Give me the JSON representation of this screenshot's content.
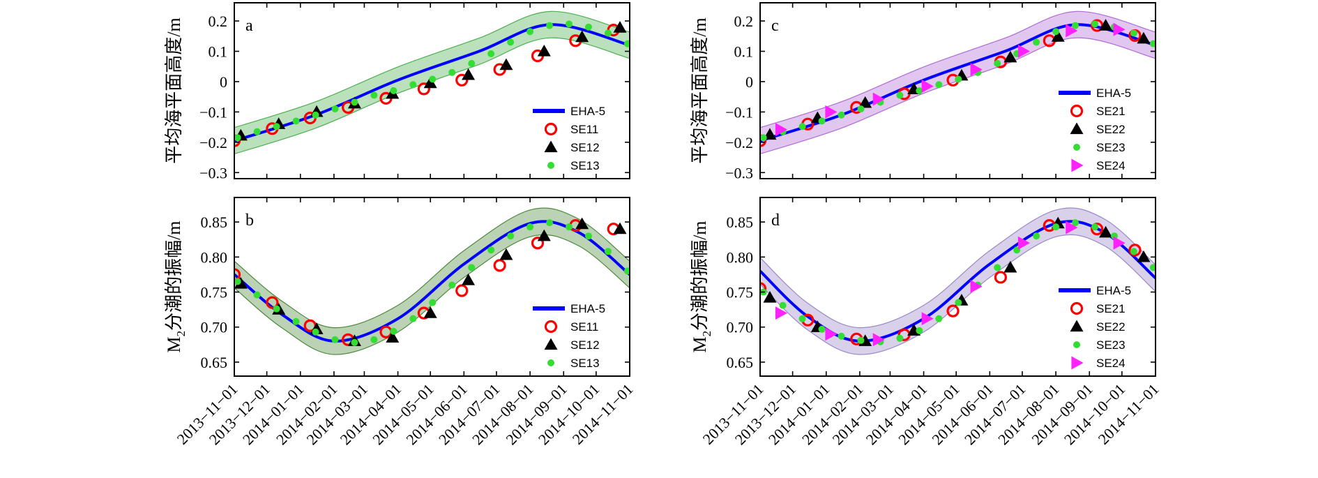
{
  "chart_data": [
    {
      "type": "line",
      "panel": "a",
      "ylabel": "平均海平面高度/m",
      "ylim": [
        -0.32,
        0.26
      ],
      "yticks": [
        0.2,
        0.1,
        0,
        -0.1,
        -0.2,
        -0.3
      ],
      "ytick_labels": [
        "0.2",
        "0.1",
        "0",
        "−0.1",
        "−0.2",
        "−0.3"
      ],
      "x_range": [
        "2013-11-01",
        "2014-11-01"
      ],
      "band": {
        "series": "SE12",
        "color": "#4caf50"
      },
      "series": [
        {
          "name": "EHA-5",
          "marker": "line",
          "color": "#0000ff",
          "x": [
            "2013-11-01",
            "2014-01-15",
            "2014-04-01",
            "2014-06-15",
            "2014-08-20",
            "2014-11-01"
          ],
          "y": [
            -0.195,
            -0.11,
            0.005,
            0.1,
            0.188,
            0.12
          ]
        },
        {
          "name": "SE11",
          "marker": "circle",
          "color": "#ff0000",
          "x": [
            "2013-11-01",
            "2013-12-06",
            "2014-01-10",
            "2014-02-14",
            "2014-03-21",
            "2014-04-25",
            "2014-05-30",
            "2014-07-04",
            "2014-08-08",
            "2014-09-12",
            "2014-10-17"
          ],
          "y": [
            -0.195,
            -0.155,
            -0.12,
            -0.085,
            -0.055,
            -0.024,
            0.005,
            0.04,
            0.085,
            0.135,
            0.17
          ]
        },
        {
          "name": "SE12",
          "marker": "triangle",
          "color": "#000000",
          "x": [
            "2013-11-07",
            "2013-12-12",
            "2014-01-16",
            "2014-02-20",
            "2014-03-27",
            "2014-05-01",
            "2014-06-05",
            "2014-07-10",
            "2014-08-14",
            "2014-09-18",
            "2014-10-23"
          ],
          "y": [
            -0.178,
            -0.14,
            -0.1,
            -0.072,
            -0.04,
            -0.005,
            0.022,
            0.055,
            0.1,
            0.147,
            0.178
          ]
        },
        {
          "name": "SE13",
          "marker": "dot",
          "color": "#33dd33",
          "x": [
            "2013-11-04",
            "2013-11-22",
            "2013-12-10",
            "2013-12-28",
            "2014-01-15",
            "2014-02-02",
            "2014-02-20",
            "2014-03-10",
            "2014-03-28",
            "2014-04-15",
            "2014-05-03",
            "2014-05-21",
            "2014-06-08",
            "2014-06-26",
            "2014-07-14",
            "2014-08-01",
            "2014-08-19",
            "2014-09-06",
            "2014-09-24",
            "2014-10-12",
            "2014-10-30"
          ],
          "y": [
            -0.185,
            -0.165,
            -0.148,
            -0.13,
            -0.11,
            -0.09,
            -0.068,
            -0.045,
            -0.03,
            -0.01,
            0.008,
            0.03,
            0.06,
            0.092,
            0.13,
            0.165,
            0.185,
            0.19,
            0.18,
            0.16,
            0.125
          ]
        }
      ],
      "legend_position": "lower-right"
    },
    {
      "type": "line",
      "panel": "b",
      "ylabel": "M2分潮的振幅/m",
      "ylim": [
        0.63,
        0.885
      ],
      "yticks": [
        0.85,
        0.8,
        0.75,
        0.7,
        0.65
      ],
      "ytick_labels": [
        "0.85",
        "0.80",
        "0.75",
        "0.70",
        "0.65"
      ],
      "x_range": [
        "2013-11-01",
        "2014-11-01"
      ],
      "band": {
        "series": "SE12",
        "color": "#4b8a3b"
      },
      "series": [
        {
          "name": "EHA-5",
          "marker": "line",
          "color": "#0000ff",
          "x": [
            "2013-11-01",
            "2013-12-15",
            "2014-02-01",
            "2014-04-01",
            "2014-06-01",
            "2014-08-01",
            "2014-09-15",
            "2014-11-01"
          ],
          "y": [
            0.775,
            0.718,
            0.68,
            0.712,
            0.79,
            0.848,
            0.835,
            0.775
          ]
        },
        {
          "name": "SE11",
          "marker": "circle",
          "color": "#ff0000",
          "x": [
            "2013-11-01",
            "2013-12-06",
            "2014-01-10",
            "2014-02-14",
            "2014-03-21",
            "2014-04-25",
            "2014-05-30",
            "2014-07-04",
            "2014-08-08",
            "2014-09-12",
            "2014-10-17"
          ],
          "y": [
            0.775,
            0.735,
            0.702,
            0.682,
            0.693,
            0.72,
            0.752,
            0.788,
            0.82,
            0.845,
            0.84
          ]
        },
        {
          "name": "SE12",
          "marker": "triangle",
          "color": "#000000",
          "x": [
            "2013-11-07",
            "2013-12-12",
            "2014-01-16",
            "2014-02-20",
            "2014-03-27",
            "2014-05-01",
            "2014-06-05",
            "2014-07-10",
            "2014-08-14",
            "2014-09-18",
            "2014-10-23"
          ],
          "y": [
            0.762,
            0.725,
            0.697,
            0.68,
            0.685,
            0.72,
            0.767,
            0.803,
            0.83,
            0.847,
            0.84
          ]
        },
        {
          "name": "SE13",
          "marker": "dot",
          "color": "#33dd33",
          "x": [
            "2013-11-04",
            "2013-11-22",
            "2013-12-10",
            "2013-12-28",
            "2014-01-15",
            "2014-02-02",
            "2014-02-20",
            "2014-03-10",
            "2014-03-28",
            "2014-04-15",
            "2014-05-03",
            "2014-05-21",
            "2014-06-08",
            "2014-06-26",
            "2014-07-14",
            "2014-08-01",
            "2014-08-19",
            "2014-09-06",
            "2014-09-24",
            "2014-10-12",
            "2014-10-30"
          ],
          "y": [
            0.765,
            0.746,
            0.726,
            0.708,
            0.693,
            0.682,
            0.678,
            0.682,
            0.694,
            0.712,
            0.735,
            0.76,
            0.785,
            0.81,
            0.83,
            0.843,
            0.849,
            0.843,
            0.83,
            0.808,
            0.78
          ]
        }
      ],
      "legend_position": "lower-right"
    },
    {
      "type": "line",
      "panel": "c",
      "ylabel": "平均海平面高度/m",
      "ylim": [
        -0.32,
        0.26
      ],
      "yticks": [
        0.2,
        0.1,
        0,
        -0.1,
        -0.2,
        -0.3
      ],
      "ytick_labels": [
        "0.2",
        "0.1",
        "0",
        "−0.1",
        "−0.2",
        "−0.3"
      ],
      "x_range": [
        "2013-11-01",
        "2014-11-01"
      ],
      "band": {
        "series": "SE24",
        "color": "#b06ad6"
      },
      "series": [
        {
          "name": "EHA-5",
          "marker": "line",
          "color": "#0000ff",
          "x": [
            "2013-11-01",
            "2014-01-15",
            "2014-04-01",
            "2014-06-15",
            "2014-08-20",
            "2014-11-01"
          ],
          "y": [
            -0.195,
            -0.11,
            0.005,
            0.1,
            0.188,
            0.12
          ]
        },
        {
          "name": "SE21",
          "marker": "circle",
          "color": "#ff0000",
          "x": [
            "2013-11-01",
            "2013-12-15",
            "2014-01-29",
            "2014-03-14",
            "2014-04-28",
            "2014-06-11",
            "2014-07-26",
            "2014-09-08",
            "2014-10-13"
          ],
          "y": [
            -0.195,
            -0.14,
            -0.085,
            -0.04,
            0.005,
            0.065,
            0.135,
            0.185,
            0.152
          ]
        },
        {
          "name": "SE22",
          "marker": "triangle",
          "color": "#000000",
          "x": [
            "2013-11-10",
            "2013-12-24",
            "2014-02-06",
            "2014-03-23",
            "2014-05-06",
            "2014-06-20",
            "2014-08-03",
            "2014-09-16",
            "2014-10-21"
          ],
          "y": [
            -0.175,
            -0.12,
            -0.07,
            -0.025,
            0.02,
            0.08,
            0.148,
            0.185,
            0.142
          ]
        },
        {
          "name": "SE23",
          "marker": "dot",
          "color": "#33dd33",
          "x": [
            "2013-11-04",
            "2013-11-22",
            "2013-12-10",
            "2013-12-28",
            "2014-01-15",
            "2014-02-02",
            "2014-02-20",
            "2014-03-10",
            "2014-03-28",
            "2014-04-15",
            "2014-05-03",
            "2014-05-21",
            "2014-06-08",
            "2014-06-26",
            "2014-07-14",
            "2014-08-01",
            "2014-08-19",
            "2014-09-06",
            "2014-09-24",
            "2014-10-12",
            "2014-10-30"
          ],
          "y": [
            -0.185,
            -0.165,
            -0.148,
            -0.13,
            -0.11,
            -0.09,
            -0.068,
            -0.045,
            -0.03,
            -0.01,
            0.008,
            0.03,
            0.06,
            0.092,
            0.13,
            0.165,
            0.185,
            0.19,
            0.18,
            0.16,
            0.125
          ]
        },
        {
          "name": "SE24",
          "marker": "triangle-right",
          "color": "#ff22ff",
          "x": [
            "2013-11-20",
            "2014-01-05",
            "2014-02-18",
            "2014-04-04",
            "2014-05-19",
            "2014-07-02",
            "2014-08-15",
            "2014-09-28"
          ],
          "y": [
            -0.158,
            -0.1,
            -0.058,
            -0.015,
            0.04,
            0.1,
            0.168,
            0.172
          ]
        }
      ],
      "legend_position": "lower-right"
    },
    {
      "type": "line",
      "panel": "d",
      "ylabel": "M2分潮的振幅/m",
      "ylim": [
        0.63,
        0.885
      ],
      "yticks": [
        0.85,
        0.8,
        0.75,
        0.7,
        0.65
      ],
      "ytick_labels": [
        "0.85",
        "0.80",
        "0.75",
        "0.70",
        "0.65"
      ],
      "x_range": [
        "2013-11-01",
        "2014-11-01"
      ],
      "band": {
        "series": "SE24",
        "color": "#9a86c9"
      },
      "series": [
        {
          "name": "EHA-5",
          "marker": "line",
          "color": "#0000ff",
          "x": [
            "2013-11-01",
            "2013-12-15",
            "2014-02-01",
            "2014-04-01",
            "2014-06-01",
            "2014-08-01",
            "2014-09-15",
            "2014-11-01"
          ],
          "y": [
            0.78,
            0.715,
            0.68,
            0.712,
            0.79,
            0.848,
            0.835,
            0.77
          ]
        },
        {
          "name": "SE21",
          "marker": "circle",
          "color": "#ff0000",
          "x": [
            "2013-11-01",
            "2013-12-15",
            "2014-01-29",
            "2014-03-14",
            "2014-04-28",
            "2014-06-11",
            "2014-07-26",
            "2014-09-08",
            "2014-10-13"
          ],
          "y": [
            0.755,
            0.71,
            0.683,
            0.689,
            0.723,
            0.771,
            0.845,
            0.84,
            0.81
          ]
        },
        {
          "name": "SE22",
          "marker": "triangle",
          "color": "#000000",
          "x": [
            "2013-11-10",
            "2013-12-24",
            "2014-02-06",
            "2014-03-23",
            "2014-05-06",
            "2014-06-20",
            "2014-08-03",
            "2014-09-16",
            "2014-10-21"
          ],
          "y": [
            0.742,
            0.7,
            0.68,
            0.695,
            0.738,
            0.785,
            0.848,
            0.835,
            0.8
          ]
        },
        {
          "name": "SE23",
          "marker": "dot",
          "color": "#33dd33",
          "x": [
            "2013-11-04",
            "2013-11-22",
            "2013-12-10",
            "2013-12-28",
            "2014-01-15",
            "2014-02-02",
            "2014-02-20",
            "2014-03-10",
            "2014-03-28",
            "2014-04-15",
            "2014-05-03",
            "2014-05-21",
            "2014-06-08",
            "2014-06-26",
            "2014-07-14",
            "2014-08-01",
            "2014-08-19",
            "2014-09-06",
            "2014-09-24",
            "2014-10-12",
            "2014-10-30"
          ],
          "y": [
            0.75,
            0.731,
            0.712,
            0.697,
            0.687,
            0.681,
            0.679,
            0.684,
            0.695,
            0.712,
            0.735,
            0.76,
            0.785,
            0.81,
            0.83,
            0.843,
            0.849,
            0.843,
            0.83,
            0.808,
            0.785
          ]
        },
        {
          "name": "SE24",
          "marker": "triangle-right",
          "color": "#ff22ff",
          "x": [
            "2013-11-20",
            "2014-01-05",
            "2014-02-18",
            "2014-04-04",
            "2014-05-19",
            "2014-07-02",
            "2014-08-15",
            "2014-09-28"
          ],
          "y": [
            0.72,
            0.69,
            0.682,
            0.712,
            0.758,
            0.82,
            0.842,
            0.82
          ]
        }
      ],
      "legend_position": "lower-right"
    }
  ],
  "x_tick_labels": [
    "2013−11−01",
    "2013−12−01",
    "2014−01−01",
    "2014−02−01",
    "2014−03−01",
    "2014−04−01",
    "2014−05−01",
    "2014−06−01",
    "2014−07−01",
    "2014−08−01",
    "2014−09−01",
    "2014−10−01",
    "2014−11−01"
  ],
  "x_tick_dates": [
    "2013-11-01",
    "2013-12-01",
    "2014-01-01",
    "2014-02-01",
    "2014-03-01",
    "2014-04-01",
    "2014-05-01",
    "2014-06-01",
    "2014-07-01",
    "2014-08-01",
    "2014-09-01",
    "2014-10-01",
    "2014-11-01"
  ]
}
